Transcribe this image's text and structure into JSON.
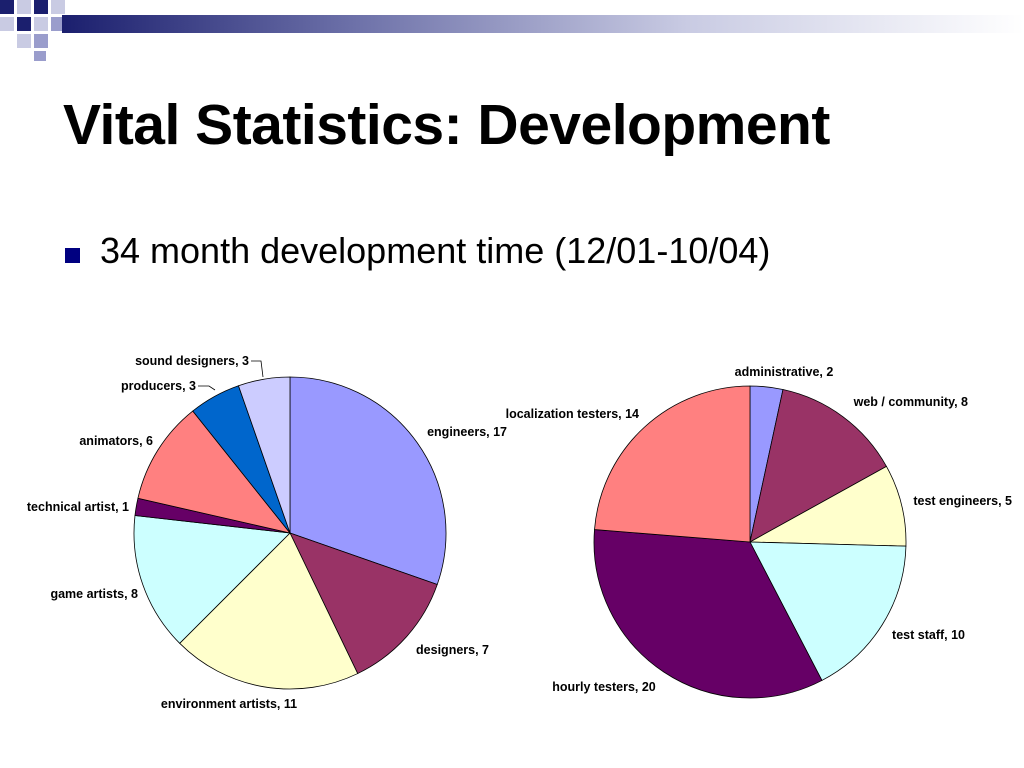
{
  "slide": {
    "title": "Vital Statistics: Development",
    "bullets": [
      "34 month development time (12/01-10/04)"
    ]
  },
  "colors": {
    "title_text": "#000000",
    "bullet_square": "#000080",
    "rule_dark": "#1b1f6e",
    "deco_navy": "#1b1f6e",
    "deco_light": "#c9cbe3",
    "deco_mid": "#9a9dcc",
    "pie_stroke": "#000000"
  },
  "chart_data": [
    {
      "type": "pie",
      "title": "",
      "start": "12 o'clock",
      "direction": "clockwise",
      "slices": [
        {
          "label": "engineers",
          "value": 17,
          "color": "#9999ff"
        },
        {
          "label": "designers",
          "value": 7,
          "color": "#993366"
        },
        {
          "label": "environment artists",
          "value": 11,
          "color": "#ffffcc"
        },
        {
          "label": "game artists",
          "value": 8,
          "color": "#ccffff"
        },
        {
          "label": "technical artist",
          "value": 1,
          "color": "#660066"
        },
        {
          "label": "animators",
          "value": 6,
          "color": "#ff8080"
        },
        {
          "label": "producers",
          "value": 3,
          "color": "#0066cc"
        },
        {
          "label": "sound designers",
          "value": 3,
          "color": "#ccccff"
        }
      ],
      "data_labels": "label, value"
    },
    {
      "type": "pie",
      "title": "",
      "start": "12 o'clock",
      "direction": "clockwise",
      "slices": [
        {
          "label": "administrative",
          "value": 2,
          "color": "#9999ff"
        },
        {
          "label": "web / community",
          "value": 8,
          "color": "#993366"
        },
        {
          "label": "test engineers",
          "value": 5,
          "color": "#ffffcc"
        },
        {
          "label": "test staff",
          "value": 10,
          "color": "#ccffff"
        },
        {
          "label": "hourly testers",
          "value": 20,
          "color": "#660066"
        },
        {
          "label": "localization testers",
          "value": 14,
          "color": "#ff8080"
        }
      ],
      "data_labels": "label, value"
    }
  ]
}
